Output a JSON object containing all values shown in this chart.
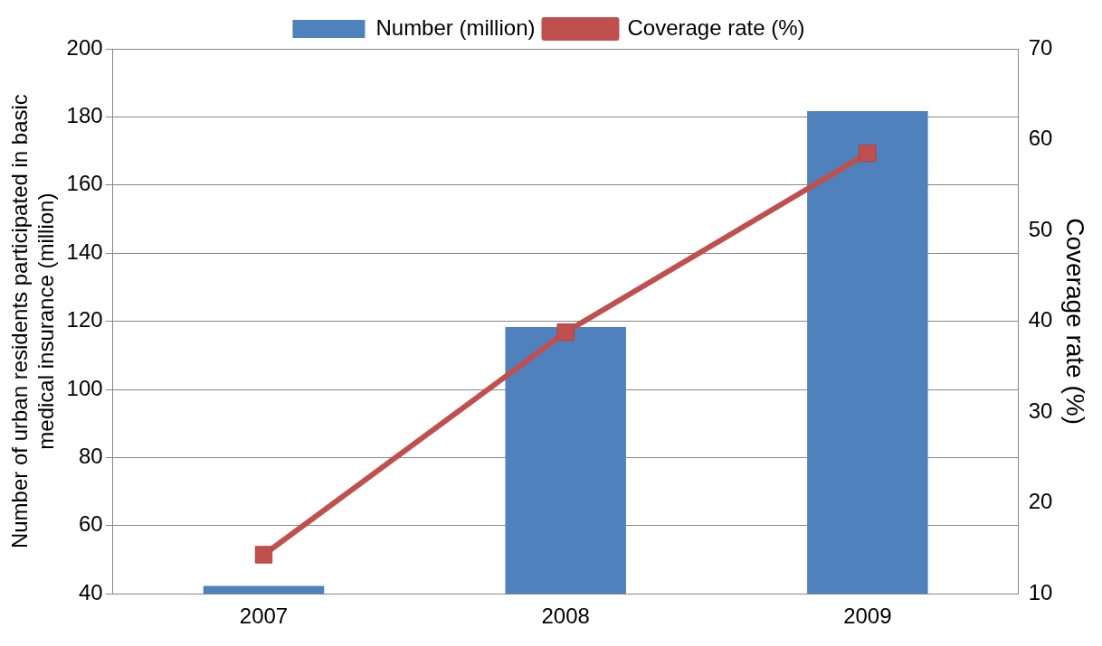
{
  "chart_data": {
    "type": "bar",
    "categories": [
      "2007",
      "2008",
      "2009"
    ],
    "series": [
      {
        "name": "Number (million)",
        "color": "#4f81bd",
        "values": [
          42.3,
          118.3,
          181.7
        ]
      },
      {
        "name": "Coverage rate (%)",
        "type": "line",
        "axis": "y2",
        "color": "#c0504d",
        "values": [
          14.3,
          38.8,
          58.5
        ]
      }
    ],
    "ylabel": "Number of urban residents participated in basic medical insurance (million)",
    "y2label": "Coverage rate (%)",
    "ylim": [
      40,
      200
    ],
    "yticks": [
      40,
      60,
      80,
      100,
      120,
      140,
      160,
      180,
      200
    ],
    "y2lim": [
      10,
      70
    ],
    "y2ticks": [
      10,
      20,
      30,
      40,
      50,
      60,
      70
    ],
    "grid": "y",
    "legend": "top",
    "marker": "square",
    "line_style": "solid"
  }
}
